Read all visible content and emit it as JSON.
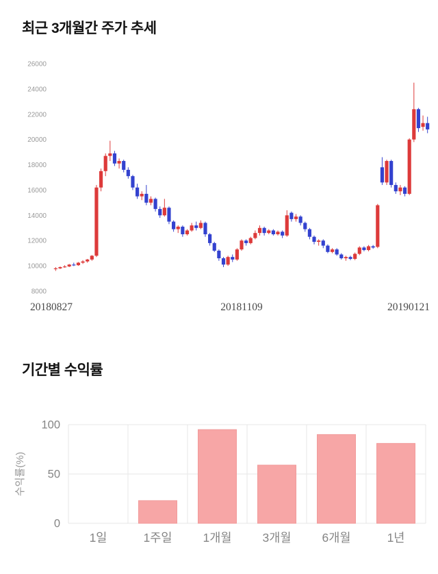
{
  "page": {
    "background": "#ffffff"
  },
  "price_section": {
    "title": "최근 3개월간 주가 추세"
  },
  "returns_section": {
    "title": "기간별 수익률"
  },
  "chart_data": [
    {
      "type": "candlestick",
      "title": "최근 3개월간 주가 추세",
      "ylim": [
        8000,
        26000
      ],
      "yticks": [
        8000,
        10000,
        12000,
        14000,
        16000,
        18000,
        20000,
        22000,
        24000,
        26000
      ],
      "xtick_labels": [
        "20180827",
        "20181109",
        "20190121"
      ],
      "up_color": "#dd3a3a",
      "down_color": "#3342cf",
      "axis_text_color": "#999999",
      "date_text_color": "#4a4a4a",
      "grid": false,
      "legend": "none",
      "candles_ohlc": [
        [
          9750,
          9900,
          9600,
          9800
        ],
        [
          9800,
          9950,
          9750,
          9900
        ],
        [
          9900,
          10050,
          9850,
          9950
        ],
        [
          9950,
          10150,
          9900,
          10100
        ],
        [
          10100,
          10250,
          9980,
          10050
        ],
        [
          10050,
          10300,
          10000,
          10250
        ],
        [
          10250,
          10450,
          10150,
          10350
        ],
        [
          10350,
          10550,
          10250,
          10500
        ],
        [
          10500,
          10850,
          10400,
          10800
        ],
        [
          10800,
          16400,
          10700,
          16200
        ],
        [
          16200,
          17700,
          15900,
          17500
        ],
        [
          17500,
          18900,
          17100,
          18700
        ],
        [
          18700,
          19900,
          18300,
          18900
        ],
        [
          18900,
          19100,
          17900,
          18100
        ],
        [
          18100,
          18500,
          17700,
          18300
        ],
        [
          18300,
          18400,
          17400,
          17600
        ],
        [
          17600,
          17800,
          16900,
          17100
        ],
        [
          17100,
          17200,
          16000,
          16200
        ],
        [
          16200,
          16500,
          15300,
          15500
        ],
        [
          15500,
          15900,
          15200,
          15700
        ],
        [
          15700,
          16400,
          14800,
          15000
        ],
        [
          15000,
          15500,
          14800,
          15300
        ],
        [
          15300,
          15400,
          14300,
          14500
        ],
        [
          14500,
          14700,
          13800,
          14000
        ],
        [
          14000,
          15300,
          13900,
          14600
        ],
        [
          14600,
          14700,
          13300,
          13500
        ],
        [
          13500,
          13600,
          12700,
          12900
        ],
        [
          12900,
          13200,
          12600,
          13100
        ],
        [
          13100,
          13200,
          12300,
          12500
        ],
        [
          12500,
          12900,
          12400,
          12800
        ],
        [
          12800,
          13400,
          12700,
          13200
        ],
        [
          13200,
          13500,
          12800,
          13000
        ],
        [
          13000,
          13600,
          12900,
          13400
        ],
        [
          13400,
          13500,
          12300,
          12500
        ],
        [
          12500,
          12600,
          11600,
          11800
        ],
        [
          11800,
          11900,
          11100,
          11200
        ],
        [
          11200,
          11300,
          10400,
          10600
        ],
        [
          10600,
          10700,
          9900,
          10100
        ],
        [
          10100,
          10800,
          10000,
          10700
        ],
        [
          10700,
          10900,
          10300,
          10500
        ],
        [
          10500,
          11400,
          10400,
          11300
        ],
        [
          11300,
          12100,
          11200,
          12000
        ],
        [
          12000,
          12100,
          11600,
          11800
        ],
        [
          11800,
          12300,
          11700,
          12200
        ],
        [
          12200,
          12800,
          12100,
          12600
        ],
        [
          12600,
          13200,
          12400,
          13000
        ],
        [
          13000,
          13100,
          12400,
          12600
        ],
        [
          12600,
          12900,
          12500,
          12800
        ],
        [
          12800,
          12900,
          12400,
          12500
        ],
        [
          12500,
          12800,
          12400,
          12700
        ],
        [
          12700,
          12800,
          12200,
          12400
        ],
        [
          12400,
          14400,
          12300,
          14000
        ],
        [
          14200,
          14300,
          13500,
          13700
        ],
        [
          13700,
          14100,
          13500,
          13900
        ],
        [
          13900,
          14000,
          13200,
          13400
        ],
        [
          13400,
          13500,
          12700,
          12900
        ],
        [
          12900,
          13000,
          12100,
          12300
        ],
        [
          12300,
          12400,
          11700,
          11900
        ],
        [
          11900,
          12100,
          11600,
          12000
        ],
        [
          12000,
          12100,
          11400,
          11600
        ],
        [
          11600,
          11700,
          11000,
          11100
        ],
        [
          11100,
          11400,
          11000,
          11300
        ],
        [
          11300,
          11400,
          10800,
          10900
        ],
        [
          10900,
          11000,
          10500,
          10600
        ],
        [
          10600,
          10800,
          10400,
          10700
        ],
        [
          10700,
          10800,
          10450,
          10550
        ],
        [
          10550,
          11050,
          10450,
          10950
        ],
        [
          10950,
          11550,
          10850,
          11450
        ],
        [
          11450,
          11550,
          11150,
          11250
        ],
        [
          11250,
          11650,
          11150,
          11550
        ],
        [
          11550,
          11650,
          11350,
          11450
        ],
        [
          11500,
          14900,
          11400,
          14800
        ],
        [
          17800,
          18600,
          16400,
          16600
        ],
        [
          16600,
          18400,
          16400,
          18300
        ],
        [
          18300,
          18400,
          16200,
          16400
        ],
        [
          16400,
          16600,
          15700,
          15900
        ],
        [
          15900,
          16400,
          15600,
          16200
        ],
        [
          16200,
          16300,
          15500,
          15700
        ],
        [
          15700,
          20100,
          15600,
          20000
        ],
        [
          20000,
          24500,
          19800,
          22400
        ],
        [
          22400,
          22500,
          20600,
          20900
        ],
        [
          21000,
          21900,
          20700,
          21300
        ],
        [
          21300,
          21800,
          20500,
          20800
        ]
      ]
    },
    {
      "type": "bar",
      "title": "기간별 수익률",
      "categories": [
        "1일",
        "1주일",
        "1개월",
        "3개월",
        "6개월",
        "1년"
      ],
      "values": [
        0,
        23,
        95,
        59,
        90,
        81
      ],
      "xlabel": "",
      "ylabel": "수익률(%)",
      "ylim": [
        0,
        100
      ],
      "yticks": [
        0,
        50,
        100
      ],
      "grid": true,
      "legend": "none",
      "bar_color": "#f7a6a6",
      "bar_border_color": "#f19b9b",
      "grid_color": "#e7e7e7",
      "axis_text_color": "#858585",
      "ylabel_color": "#979797"
    }
  ]
}
